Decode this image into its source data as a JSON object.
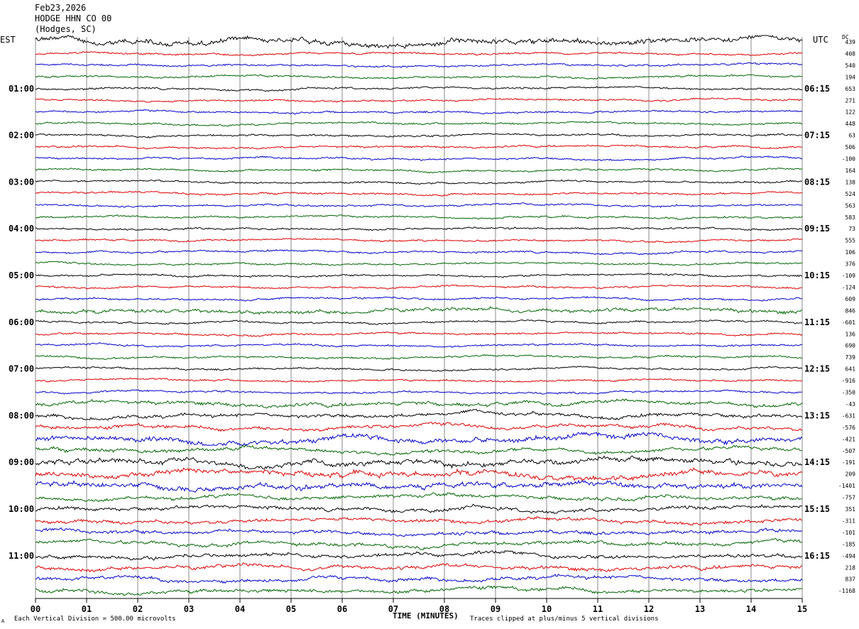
{
  "header": {
    "date": "Feb23,2026",
    "station": "HODGE HHN CO 00",
    "location": "(Hodges, SC)"
  },
  "left_tz": "EST",
  "right_tz": "UTC",
  "dc_label": "DC",
  "footer": {
    "division": "Each Vertical Division =  500.00 microvolts",
    "clip_note": "Traces clipped at plus/minus 5 vertical divisions",
    "corner_mark": "A"
  },
  "chart_data": {
    "type": "line",
    "title": "",
    "xlabel": "TIME (MINUTES)",
    "ylabel": "",
    "xlim": [
      0,
      15
    ],
    "x_ticks": [
      "00",
      "01",
      "02",
      "03",
      "04",
      "05",
      "06",
      "07",
      "08",
      "09",
      "10",
      "11",
      "12",
      "13",
      "14",
      "15"
    ],
    "trace_colors": [
      "#000000",
      "#dd0000",
      "#0000cc",
      "#006600"
    ],
    "left_time_labels": [
      {
        "trace": 4,
        "label": "01:00"
      },
      {
        "trace": 8,
        "label": "02:00"
      },
      {
        "trace": 12,
        "label": "03:00"
      },
      {
        "trace": 16,
        "label": "04:00"
      },
      {
        "trace": 20,
        "label": "05:00"
      },
      {
        "trace": 24,
        "label": "06:00"
      },
      {
        "trace": 28,
        "label": "07:00"
      },
      {
        "trace": 32,
        "label": "08:00"
      },
      {
        "trace": 36,
        "label": "09:00"
      },
      {
        "trace": 40,
        "label": "10:00"
      },
      {
        "trace": 44,
        "label": "11:00"
      }
    ],
    "right_time_labels": [
      {
        "trace": 4,
        "label": "06:15"
      },
      {
        "trace": 8,
        "label": "07:15"
      },
      {
        "trace": 12,
        "label": "08:15"
      },
      {
        "trace": 16,
        "label": "09:15"
      },
      {
        "trace": 20,
        "label": "10:15"
      },
      {
        "trace": 24,
        "label": "11:15"
      },
      {
        "trace": 28,
        "label": "12:15"
      },
      {
        "trace": 32,
        "label": "13:15"
      },
      {
        "trace": 36,
        "label": "14:15"
      },
      {
        "trace": 40,
        "label": "15:15"
      },
      {
        "trace": 44,
        "label": "16:15"
      }
    ],
    "dc_offsets": [
      439,
      408,
      540,
      194,
      653,
      271,
      122,
      448,
      63,
      506,
      -100,
      164,
      138,
      524,
      563,
      583,
      73,
      555,
      106,
      376,
      -109,
      -124,
      609,
      846,
      -601,
      136,
      690,
      739,
      641,
      -916,
      -350,
      -43,
      -631,
      -576,
      -421,
      -507,
      -191,
      209,
      -1401,
      -757,
      351,
      -311,
      -101,
      -185,
      -494,
      218,
      837,
      -1168
    ],
    "trace_activity": [
      3,
      1,
      1,
      1,
      1,
      1,
      1,
      1,
      1,
      1,
      1,
      1,
      1,
      1,
      1,
      1,
      1,
      1,
      1,
      1,
      1,
      1,
      1,
      2,
      1,
      1,
      1,
      1,
      1,
      1,
      1,
      2,
      2,
      2,
      3,
      2,
      3,
      3,
      3,
      2,
      2,
      2,
      2,
      2,
      2,
      2,
      2,
      2
    ]
  }
}
